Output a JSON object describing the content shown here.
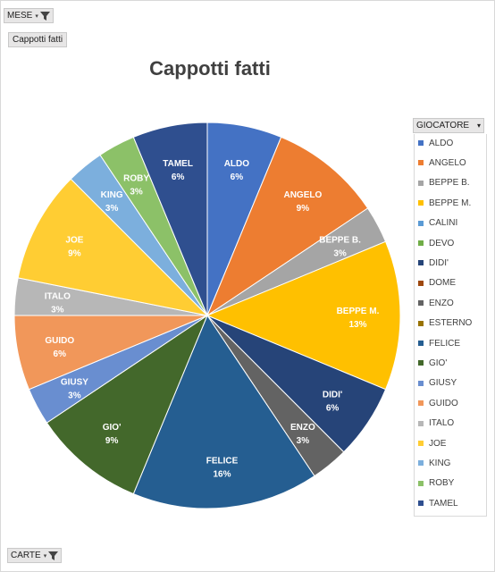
{
  "filters": {
    "mese_label": "MESE",
    "carte_label": "CARTE",
    "giocatore_label": "GIOCATORE",
    "values_chip": "Cappotti fatti"
  },
  "chart_data": {
    "type": "pie",
    "title": "Cappotti fatti",
    "legend_placement": "right",
    "slices": [
      {
        "name": "ALDO",
        "percent": 6.25,
        "label": "6%",
        "color": "#4472c4"
      },
      {
        "name": "ANGELO",
        "percent": 9.375,
        "label": "9%",
        "color": "#ed7d31"
      },
      {
        "name": "BEPPE B.",
        "percent": 3.125,
        "label": "3%",
        "color": "#a5a5a5"
      },
      {
        "name": "BEPPE M.",
        "percent": 12.5,
        "label": "13%",
        "color": "#ffc000"
      },
      {
        "name": "CALINI",
        "percent": 0,
        "label": "",
        "color": "#5b9bd5"
      },
      {
        "name": "DEVO",
        "percent": 0,
        "label": "",
        "color": "#70ad47"
      },
      {
        "name": "DIDI'",
        "percent": 6.25,
        "label": "6%",
        "color": "#264478"
      },
      {
        "name": "DOME",
        "percent": 0,
        "label": "",
        "color": "#9e480e"
      },
      {
        "name": "ENZO",
        "percent": 3.125,
        "label": "3%",
        "color": "#636363"
      },
      {
        "name": "ESTERNO",
        "percent": 0,
        "label": "",
        "color": "#997300"
      },
      {
        "name": "FELICE",
        "percent": 15.625,
        "label": "16%",
        "color": "#255e91"
      },
      {
        "name": "GIO'",
        "percent": 9.375,
        "label": "9%",
        "color": "#43682b"
      },
      {
        "name": "GIUSY",
        "percent": 3.125,
        "label": "3%",
        "color": "#698ed0"
      },
      {
        "name": "GUIDO",
        "percent": 6.25,
        "label": "6%",
        "color": "#f1975a"
      },
      {
        "name": "ITALO",
        "percent": 3.125,
        "label": "3%",
        "color": "#b7b7b7"
      },
      {
        "name": "JOE",
        "percent": 9.375,
        "label": "9%",
        "color": "#ffcd33"
      },
      {
        "name": "KING",
        "percent": 3.125,
        "label": "3%",
        "color": "#7cafdd"
      },
      {
        "name": "ROBY",
        "percent": 3.125,
        "label": "3%",
        "color": "#8cc168"
      },
      {
        "name": "TAMEL",
        "percent": 6.25,
        "label": "6%",
        "color": "#2f4f8f"
      }
    ]
  }
}
